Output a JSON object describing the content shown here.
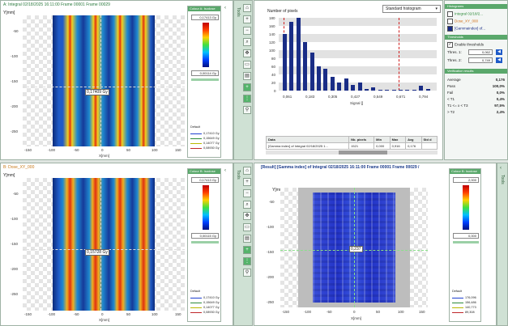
{
  "panelA": {
    "title": "A: Integral 02/18/2025 16:11:00 Frame 00001 Frame 00029",
    "yunit": "Y[mm]",
    "xunit": "X[mm]",
    "yticks": [
      "-50",
      "-100",
      "-150",
      "-200",
      "-250"
    ],
    "xticks": [
      "-150",
      "-100",
      "-50",
      "0",
      "50",
      "100",
      "150"
    ],
    "readout": "0,17409 Gy",
    "colorScale": {
      "title": "Colour A: Isodose",
      "max": "0,17413 Gy",
      "min": "0,00114 Gy",
      "default_label": "Default",
      "isodose": [
        {
          "value": "0,17410 Gy",
          "color": "#1f3fd0"
        },
        {
          "value": "0,15649 Gy",
          "color": "#2d8a3a"
        },
        {
          "value": "0,14077 Gy",
          "color": "#b9b900"
        },
        {
          "value": "0,08930 Gy",
          "color": "#c0282a"
        }
      ]
    }
  },
  "panelB": {
    "title": "B: Dose_XY_000",
    "yunit": "Y[mm]",
    "xunit": "X[mm]",
    "yticks": [
      "-50",
      "-100",
      "-150",
      "-200",
      "-250"
    ],
    "xticks": [
      "-150",
      "-100",
      "-50",
      "0",
      "50",
      "100",
      "150"
    ],
    "readout": "0,15728 Gy",
    "colorScale": {
      "title": "Colour B: Isodose",
      "max": "0,17413 Gy",
      "min": "0,00115 Gy",
      "default_label": "Default",
      "isodose": [
        {
          "value": "0,17410 Gy",
          "color": "#1f3fd0"
        },
        {
          "value": "0,15649 Gy",
          "color": "#2d8a3a"
        },
        {
          "value": "0,14077 Gy",
          "color": "#b9b900"
        },
        {
          "value": "0,08930 Gy",
          "color": "#c0282a"
        }
      ]
    }
  },
  "tools": {
    "label": "Tools"
  },
  "histogram": {
    "title": "Number of pixels",
    "mode": "Standard histogram",
    "xlabel": "Signal []",
    "yticks": [
      "180",
      "160",
      "140",
      "120",
      "100",
      "80",
      "60",
      "40",
      "20",
      "0"
    ],
    "xticks": [
      "0,061",
      "0,183",
      "0,305",
      "0,427",
      "0,549",
      "0,671",
      "0,794"
    ],
    "table": {
      "headers": [
        "Data",
        "Nb. pixels",
        "Min",
        "Max",
        "Avg",
        "Std d"
      ],
      "row": [
        "[Gamma index] of Integral 02/18/2025 1...",
        "1521",
        "0,000",
        "0,916",
        "0,176",
        ""
      ]
    }
  },
  "chart_data": {
    "type": "bar",
    "ylim": [
      0,
      180
    ],
    "values": [
      140,
      170,
      180,
      120,
      95,
      60,
      55,
      35,
      20,
      30,
      15,
      20,
      5,
      8,
      3,
      2,
      1,
      2,
      1,
      1,
      12,
      5
    ],
    "xlabel": "Signal []",
    "ylabel": "Number of pixels",
    "threshold_lines": [
      "T1",
      "T2"
    ]
  },
  "rightPanel": {
    "histogramsHeader": "Histograms",
    "items": [
      "Integral 02/18/2...",
      "Dose_XY_000",
      "[Gammaindex] of..."
    ],
    "thresholdsHeader": "Thresholds",
    "enableLabel": "Enable thresholds",
    "thres1Label": "Thres. 1:",
    "thres1Value": "0,062",
    "thres2Label": "Thres. 2:",
    "thres2Value": "0,749",
    "verifHeader": "Verification results",
    "results": [
      {
        "label": "Average",
        "value": "0,176"
      },
      {
        "label": "Pass",
        "value": "100,0%"
      },
      {
        "label": "Fail",
        "value": "0,0%"
      },
      {
        "label": "< T1",
        "value": "0,4%"
      },
      {
        "label": "T1 <= x < T3",
        "value": "97,5%"
      },
      {
        "label": "> T2",
        "value": "2,4%"
      }
    ]
  },
  "gamma": {
    "title": "[Result] [Gamma index] of Integral 02/18/2025 16:11:00 Frame 00001 Frame 00029 /",
    "yunit": "Y[mm]",
    "xunit": "X[mm]",
    "yticks": [
      "-50",
      "-100",
      "-150",
      "-200",
      "-250"
    ],
    "xticks": [
      "-150",
      "-100",
      "-50",
      "0",
      "50",
      "100",
      "150"
    ],
    "readout": "0,237",
    "colorScale": {
      "title": "Colour B: Isodose",
      "max": "2,000",
      "min": "0,000",
      "default_label": "Default",
      "isodose": [
        {
          "value": "176,096",
          "color": "#1f3fd0"
        },
        {
          "value": "156,486",
          "color": "#2d8a3a"
        },
        {
          "value": "140,773",
          "color": "#b9b900"
        },
        {
          "value": "89,308",
          "color": "#c0282a"
        }
      ]
    }
  }
}
